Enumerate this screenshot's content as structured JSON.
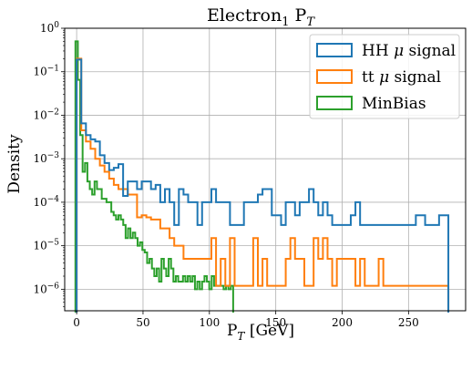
{
  "chart_data": {
    "type": "histogram",
    "title_main": "Electron",
    "title_sub": "1",
    "title_tail": " P",
    "title_tail_sub": "T",
    "xlabel_main": "P",
    "xlabel_sub": "T",
    "xlabel_tail": " [GeV]",
    "ylabel": "Density",
    "x_ticks": [
      "0",
      "50",
      "100",
      "150",
      "200",
      "250"
    ],
    "y_ticks": [
      {
        "base": "10",
        "exp": "−6"
      },
      {
        "base": "10",
        "exp": "−5"
      },
      {
        "base": "10",
        "exp": "−4"
      },
      {
        "base": "10",
        "exp": "−3"
      },
      {
        "base": "10",
        "exp": "−2"
      },
      {
        "base": "10",
        "exp": "−1"
      },
      {
        "base": "10",
        "exp": "0"
      }
    ],
    "xlim": [
      -9,
      293
    ],
    "ylim": [
      3.2e-07,
      1
    ],
    "y_scale": "log",
    "grid": true,
    "legend_position": "top-right",
    "series": [
      {
        "name_main": "HH ",
        "name_sym": "μ",
        "name_tail": " signal",
        "color": "#1f77b4",
        "bin_width": 3.5,
        "bins": [
          [
            0,
            0.19
          ],
          [
            3.5,
            0.0065
          ],
          [
            7,
            0.0035
          ],
          [
            10.5,
            0.0028
          ],
          [
            14,
            0.0025
          ],
          [
            17.5,
            0.0012
          ],
          [
            21,
            0.0008
          ],
          [
            24.5,
            0.00055
          ],
          [
            28,
            0.00062
          ],
          [
            31.5,
            0.00075
          ],
          [
            35,
            0.00014
          ],
          [
            38.5,
            0.0003
          ],
          [
            42,
            0.0003
          ],
          [
            45.5,
            0.0002
          ],
          [
            49,
            0.0003
          ],
          [
            52.5,
            0.0003
          ],
          [
            56,
            0.0002
          ],
          [
            59.5,
            0.00025
          ],
          [
            63,
            0.0001
          ],
          [
            66.5,
            0.0002
          ],
          [
            70,
            0.0001
          ],
          [
            73.5,
            3e-05
          ],
          [
            77,
            0.0002
          ],
          [
            80.5,
            0.00015
          ],
          [
            84,
            0.0001
          ],
          [
            87.5,
            0.0001
          ],
          [
            91,
            3e-05
          ],
          [
            94.5,
            0.0001
          ],
          [
            98,
            0.0001
          ],
          [
            101.5,
            0.0002
          ],
          [
            105,
            0.0001
          ],
          [
            108.5,
            0.0001
          ],
          [
            112,
            0.0001
          ],
          [
            115.5,
            3e-05
          ],
          [
            119,
            3e-05
          ],
          [
            122.5,
            3e-05
          ],
          [
            126,
            0.0001
          ],
          [
            129.5,
            0.0001
          ],
          [
            133,
            0.0001
          ],
          [
            136.5,
            0.00015
          ],
          [
            140,
            0.0002
          ],
          [
            143.5,
            0.0002
          ],
          [
            147,
            5e-05
          ],
          [
            150.5,
            5e-05
          ],
          [
            154,
            3e-05
          ],
          [
            157.5,
            0.0001
          ],
          [
            161,
            0.0001
          ],
          [
            164.5,
            5e-05
          ],
          [
            168,
            0.0001
          ],
          [
            171.5,
            0.0001
          ],
          [
            175,
            0.0002
          ],
          [
            178.5,
            0.0001
          ],
          [
            182,
            5e-05
          ],
          [
            185.5,
            0.0001
          ],
          [
            189,
            5e-05
          ],
          [
            192.5,
            3e-05
          ],
          [
            196,
            3e-05
          ],
          [
            199.5,
            3e-05
          ],
          [
            203,
            3e-05
          ],
          [
            206.5,
            5e-05
          ],
          [
            210,
            0.0001
          ],
          [
            213.5,
            3e-05
          ],
          [
            217,
            3e-05
          ],
          [
            220.5,
            3e-05
          ],
          [
            224,
            3e-05
          ],
          [
            227.5,
            3e-05
          ],
          [
            231,
            3e-05
          ],
          [
            234.5,
            3e-05
          ],
          [
            238,
            3e-05
          ],
          [
            241.5,
            3e-05
          ],
          [
            245,
            3e-05
          ],
          [
            248.5,
            3e-05
          ],
          [
            252,
            3e-05
          ],
          [
            255.5,
            5e-05
          ],
          [
            259,
            5e-05
          ],
          [
            262.5,
            3e-05
          ],
          [
            266,
            3e-05
          ],
          [
            269.5,
            3e-05
          ],
          [
            273,
            5e-05
          ],
          [
            276.5,
            5e-05
          ]
        ]
      },
      {
        "name_main": "tt ",
        "name_sym": "μ",
        "name_tail": " signal",
        "color": "#ff7f0e",
        "bin_width": 3.5,
        "bins": [
          [
            0,
            0.2
          ],
          [
            3.5,
            0.0045
          ],
          [
            7,
            0.0025
          ],
          [
            10.5,
            0.0017
          ],
          [
            14,
            0.001
          ],
          [
            17.5,
            0.0007
          ],
          [
            21,
            0.0005
          ],
          [
            24.5,
            0.00035
          ],
          [
            28,
            0.00025
          ],
          [
            31.5,
            0.0002
          ],
          [
            35,
            0.0002
          ],
          [
            38.5,
            0.00015
          ],
          [
            42,
            0.00015
          ],
          [
            45.5,
            4.5e-05
          ],
          [
            49,
            5e-05
          ],
          [
            52.5,
            4.5e-05
          ],
          [
            56,
            4e-05
          ],
          [
            59.5,
            4e-05
          ],
          [
            63,
            2.5e-05
          ],
          [
            66.5,
            2.5e-05
          ],
          [
            70,
            1.5e-05
          ],
          [
            73.5,
            1e-05
          ],
          [
            77,
            1e-05
          ],
          [
            80.5,
            5e-06
          ],
          [
            84,
            5e-06
          ],
          [
            87.5,
            5e-06
          ],
          [
            91,
            5e-06
          ],
          [
            94.5,
            5e-06
          ],
          [
            98,
            5e-06
          ],
          [
            101.5,
            1.5e-05
          ],
          [
            105,
            1.2e-06
          ],
          [
            108.5,
            5e-06
          ],
          [
            112,
            1.2e-06
          ],
          [
            115.5,
            1.5e-05
          ],
          [
            119,
            1.2e-06
          ],
          [
            122.5,
            1.2e-06
          ],
          [
            126,
            1.2e-06
          ],
          [
            129.5,
            1.2e-06
          ],
          [
            133,
            1.5e-05
          ],
          [
            136.5,
            1.2e-06
          ],
          [
            140,
            5e-06
          ],
          [
            143.5,
            1.2e-06
          ],
          [
            147,
            1.2e-06
          ],
          [
            150.5,
            1.2e-06
          ],
          [
            154,
            1.2e-06
          ],
          [
            157.5,
            5e-06
          ],
          [
            161,
            1.5e-05
          ],
          [
            164.5,
            5e-06
          ],
          [
            168,
            5e-06
          ],
          [
            171.5,
            1.2e-06
          ],
          [
            175,
            1.2e-06
          ],
          [
            178.5,
            1.5e-05
          ],
          [
            182,
            5e-06
          ],
          [
            185.5,
            1.5e-05
          ],
          [
            189,
            5e-06
          ],
          [
            192.5,
            1.2e-06
          ],
          [
            196,
            5e-06
          ],
          [
            199.5,
            5e-06
          ],
          [
            203,
            5e-06
          ],
          [
            206.5,
            5e-06
          ],
          [
            210,
            1.2e-06
          ],
          [
            213.5,
            5e-06
          ],
          [
            217,
            1.2e-06
          ],
          [
            220.5,
            1.2e-06
          ],
          [
            224,
            1.2e-06
          ],
          [
            227.5,
            5e-06
          ],
          [
            231,
            1.2e-06
          ],
          [
            234.5,
            1.2e-06
          ],
          [
            238,
            1.2e-06
          ],
          [
            241.5,
            1.2e-06
          ],
          [
            245,
            1.2e-06
          ],
          [
            248.5,
            1.2e-06
          ],
          [
            252,
            1.2e-06
          ],
          [
            255.5,
            1.2e-06
          ],
          [
            259,
            1.2e-06
          ],
          [
            262.5,
            1.2e-06
          ],
          [
            266,
            1.2e-06
          ],
          [
            269.5,
            1.2e-06
          ],
          [
            273,
            1.2e-06
          ],
          [
            276.5,
            1.2e-06
          ]
        ]
      },
      {
        "name_main": "MinBias",
        "name_sym": "",
        "name_tail": "",
        "color": "#2ca02c",
        "bin_width": 1.8,
        "bins": [
          [
            -0.9,
            0.5
          ],
          [
            0.9,
            0.065
          ],
          [
            2.7,
            0.0035
          ],
          [
            4.5,
            0.0005
          ],
          [
            6.3,
            0.0008
          ],
          [
            8.1,
            0.0003
          ],
          [
            9.9,
            0.0002
          ],
          [
            11.7,
            0.00015
          ],
          [
            13.5,
            0.0003
          ],
          [
            15.3,
            0.0002
          ],
          [
            17.1,
            0.0002
          ],
          [
            18.9,
            0.00012
          ],
          [
            20.7,
            0.00012
          ],
          [
            22.5,
            0.0001
          ],
          [
            24.3,
            0.0001
          ],
          [
            26.1,
            6e-05
          ],
          [
            27.9,
            5e-05
          ],
          [
            29.7,
            4e-05
          ],
          [
            31.5,
            5e-05
          ],
          [
            33.3,
            4e-05
          ],
          [
            35.1,
            3e-05
          ],
          [
            36.9,
            1.5e-05
          ],
          [
            38.7,
            2.5e-05
          ],
          [
            40.5,
            1.5e-05
          ],
          [
            42.3,
            2e-05
          ],
          [
            44.1,
            1.5e-05
          ],
          [
            45.9,
            1e-05
          ],
          [
            47.7,
            1.2e-05
          ],
          [
            49.5,
            8e-06
          ],
          [
            51.3,
            7e-06
          ],
          [
            53.1,
            4e-06
          ],
          [
            54.9,
            5e-06
          ],
          [
            56.7,
            3e-06
          ],
          [
            58.5,
            2e-06
          ],
          [
            60.3,
            3e-06
          ],
          [
            62.1,
            1.5e-06
          ],
          [
            63.9,
            5e-06
          ],
          [
            65.7,
            3e-06
          ],
          [
            67.5,
            2e-06
          ],
          [
            69.3,
            5e-06
          ],
          [
            71.1,
            3e-06
          ],
          [
            72.9,
            1.5e-06
          ],
          [
            74.7,
            2e-06
          ],
          [
            76.5,
            1.5e-06
          ],
          [
            78.3,
            1.5e-06
          ],
          [
            80.1,
            2e-06
          ],
          [
            81.9,
            1.5e-06
          ],
          [
            83.7,
            2e-06
          ],
          [
            85.5,
            1.5e-06
          ],
          [
            87.3,
            2e-06
          ],
          [
            89.1,
            1e-06
          ],
          [
            90.9,
            1.5e-06
          ],
          [
            92.7,
            1e-06
          ],
          [
            94.5,
            1.5e-06
          ],
          [
            96.3,
            2e-06
          ],
          [
            98.1,
            1.5e-06
          ],
          [
            99.9,
            1e-06
          ],
          [
            101.7,
            2e-06
          ],
          [
            103.5,
            1.2e-06
          ],
          [
            105.3,
            1.2e-06
          ],
          [
            107.1,
            1.2e-06
          ],
          [
            108.9,
            1.2e-06
          ],
          [
            110.7,
            1e-06
          ],
          [
            112.5,
            1.2e-06
          ],
          [
            114.3,
            1e-06
          ],
          [
            116.1,
            1.2e-06
          ]
        ]
      }
    ]
  }
}
